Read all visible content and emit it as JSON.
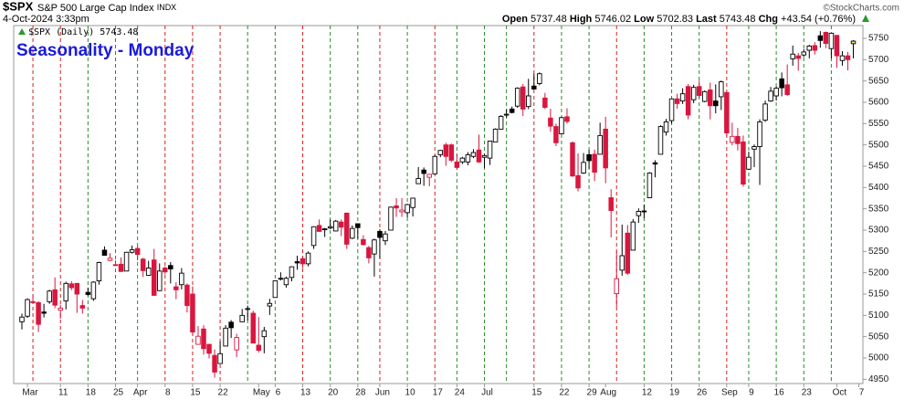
{
  "header": {
    "symbol": "$SPX",
    "name": "S&P 500 Large Cap Index",
    "exchange": "INDX",
    "datetime": "4-Oct-2024 3:33pm",
    "copyright": "©StockCharts.com",
    "open_label": "Open",
    "high_label": "High",
    "low_label": "Low",
    "last_label": "Last",
    "chg_label": "Chg",
    "chg": {
      "value": 43.54,
      "label": "+43.54"
    },
    "chg_pct": {
      "value": 0.76,
      "label": "(+0.76%)"
    }
  },
  "chart_data": {
    "type": "candlestick",
    "title": "Seasonality - Monday",
    "legend_label": "$SPX (Daily)",
    "categories": [
      null,
      "Mar",
      null,
      null,
      null,
      null,
      null,
      "11",
      null,
      null,
      null,
      null,
      "18",
      null,
      null,
      null,
      null,
      "25",
      null,
      null,
      null,
      "Apr",
      null,
      null,
      null,
      null,
      "8",
      null,
      null,
      null,
      null,
      "15",
      null,
      null,
      null,
      null,
      "22",
      null,
      null,
      null,
      null,
      null,
      null,
      "May",
      null,
      null,
      "6",
      null,
      null,
      null,
      null,
      "13",
      null,
      null,
      null,
      null,
      "20",
      null,
      null,
      null,
      null,
      "28",
      null,
      null,
      null,
      "Jun",
      null,
      null,
      null,
      null,
      "10",
      null,
      null,
      null,
      null,
      "17",
      null,
      null,
      null,
      "24",
      null,
      null,
      null,
      null,
      "Jul",
      null,
      null,
      null,
      null,
      null,
      null,
      null,
      null,
      "15",
      null,
      null,
      null,
      null,
      "22",
      null,
      null,
      null,
      null,
      "29",
      null,
      null,
      "Aug",
      null,
      null,
      null,
      null,
      null,
      null,
      "12",
      null,
      null,
      null,
      null,
      "19",
      null,
      null,
      null,
      null,
      "26",
      null,
      null,
      null,
      null,
      "Sep",
      null,
      null,
      null,
      "9",
      null,
      null,
      null,
      null,
      "16",
      null,
      null,
      null,
      null,
      "23",
      null,
      null,
      null,
      null,
      null,
      "Oct",
      null,
      null,
      null,
      "7"
    ],
    "open": [
      5085,
      5098,
      5132,
      5130,
      5108,
      5132,
      5160,
      5112,
      5134,
      5174,
      5175,
      5123,
      5154,
      5139,
      5181,
      5253,
      5229,
      5219,
      5220,
      5204,
      5248,
      5257,
      5232,
      5194,
      5230,
      5158,
      5211,
      5217,
      5167,
      5172,
      5171,
      5150,
      5032,
      5068,
      5032,
      5006,
      4987,
      5028,
      5084,
      5019,
      5085,
      5114,
      5105,
      5030,
      5050,
      5122,
      5142,
      5187,
      5172,
      5189,
      5226,
      5233,
      5221,
      5264,
      5311,
      5303,
      5305,
      5298,
      5319,
      5340,
      5281,
      5315,
      5278,
      5259,
      5244,
      5297,
      5275,
      5300,
      5357,
      5343,
      5341,
      5353,
      5409,
      5441,
      5424,
      5432,
      5477,
      5500,
      5500,
      5460,
      5460,
      5460,
      5473,
      5488,
      5471,
      5469,
      5507,
      5537,
      5572,
      5584,
      5591,
      5636,
      5590,
      5638,
      5644,
      5610,
      5563,
      5543,
      5526,
      5566,
      5505,
      5428,
      5434,
      5477,
      5478,
      5478,
      5537,
      5376,
      5151,
      5206,
      5293,
      5253,
      5334,
      5345,
      5376,
      5458,
      5478,
      5530,
      5557,
      5608,
      5603,
      5637,
      5606,
      5637,
      5602,
      5629,
      5603,
      5613,
      5623,
      5506,
      5520,
      5507,
      5443,
      5490,
      5496,
      5558,
      5603,
      5615,
      5655,
      5641,
      5702,
      5709,
      5711,
      5722,
      5733,
      5756,
      5764,
      5726,
      5757,
      5698,
      5709,
      5737.48,
      null
    ],
    "high": [
      5104,
      5140,
      5149,
      5133,
      5127,
      5160,
      5189,
      5125,
      5179,
      5180,
      5176,
      5136,
      5165,
      5180,
      5226,
      5262,
      5246,
      5229,
      5236,
      5249,
      5264,
      5263,
      5235,
      5228,
      5256,
      5222,
      5215,
      5225,
      5178,
      5211,
      5175,
      5168,
      5075,
      5077,
      5033,
      5020,
      5039,
      5077,
      5089,
      5057,
      5115,
      5123,
      5111,
      5096,
      5073,
      5139,
      5181,
      5201,
      5191,
      5215,
      5240,
      5238,
      5250,
      5309,
      5325,
      5305,
      5325,
      5324,
      5325,
      5341,
      5311,
      5315,
      5288,
      5263,
      5280,
      5302,
      5298,
      5355,
      5375,
      5375,
      5362,
      5376,
      5448,
      5447,
      5432,
      5476,
      5488,
      5505,
      5503,
      5478,
      5472,
      5483,
      5490,
      5524,
      5479,
      5510,
      5539,
      5570,
      5583,
      5590,
      5635,
      5643,
      5655,
      5667,
      5670,
      5622,
      5585,
      5550,
      5566,
      5586,
      5508,
      5480,
      5481,
      5488,
      5489,
      5552,
      5566,
      5396,
      5250,
      5313,
      5312,
      5326,
      5351,
      5360,
      5436,
      5464,
      5546,
      5561,
      5609,
      5620,
      5633,
      5643,
      5641,
      5651,
      5628,
      5646,
      5642,
      5651,
      5623,
      5552,
      5540,
      5522,
      5484,
      5501,
      5560,
      5604,
      5636,
      5637,
      5670,
      5689,
      5733,
      5716,
      5725,
      5735,
      5741,
      5767,
      5766,
      5763,
      5758,
      5720,
      5718,
      5746.02,
      null
    ],
    "low": [
      5067,
      5094,
      5127,
      5061,
      5095,
      5127,
      5117,
      5092,
      5114,
      5159,
      5106,
      5104,
      5146,
      5134,
      5172,
      5240,
      5227,
      5216,
      5202,
      5204,
      5245,
      5229,
      5190,
      5194,
      5146,
      5157,
      5196,
      5175,
      5138,
      5161,
      5107,
      5053,
      5031,
      5008,
      4999,
      4954,
      4987,
      5028,
      5047,
      5002,
      5084,
      5088,
      5035,
      5013,
      5011,
      5101,
      5142,
      5182,
      5165,
      5180,
      5207,
      5211,
      5215,
      5256,
      5296,
      5284,
      5302,
      5297,
      5286,
      5256,
      5279,
      5280,
      5264,
      5222,
      5191,
      5234,
      5265,
      5300,
      5331,
      5331,
      5330,
      5332,
      5409,
      5404,
      5403,
      5432,
      5471,
      5451,
      5460,
      5442,
      5455,
      5452,
      5469,
      5458,
      5446,
      5453,
      5507,
      5537,
      5564,
      5574,
      5587,
      5568,
      5584,
      5630,
      5640,
      5584,
      5531,
      5497,
      5525,
      5550,
      5425,
      5391,
      5432,
      5444,
      5415,
      5478,
      5410,
      5283,
      5120,
      5193,
      5195,
      5253,
      5317,
      5328,
      5376,
      5424,
      5478,
      5522,
      5550,
      5585,
      5596,
      5560,
      5598,
      5610,
      5600,
      5560,
      5574,
      5582,
      5521,
      5499,
      5487,
      5402,
      5441,
      5448,
      5406,
      5554,
      5601,
      5604,
      5614,
      5615,
      5686,
      5674,
      5706,
      5703,
      5712,
      5728,
      5727,
      5703,
      5681,
      5686,
      5675,
      5702.83,
      null
    ],
    "close": [
      5096,
      5137,
      5130,
      5079,
      5105,
      5157,
      5124,
      5117,
      5175,
      5165,
      5150,
      5117,
      5149,
      5178,
      5224,
      5241,
      5234,
      5218,
      5203,
      5248,
      5254,
      5243,
      5205,
      5211,
      5147,
      5204,
      5202,
      5209,
      5160,
      5199,
      5123,
      5061,
      5051,
      5022,
      5011,
      4967,
      5010,
      5070,
      5071,
      5048,
      5100,
      5116,
      5035,
      5018,
      5064,
      5128,
      5181,
      5187,
      5187,
      5214,
      5223,
      5221,
      5246,
      5308,
      5297,
      5303,
      5308,
      5321,
      5307,
      5267,
      5304,
      5306,
      5266,
      5235,
      5277,
      5283,
      5291,
      5354,
      5352,
      5347,
      5360,
      5375,
      5421,
      5433,
      5431,
      5473,
      5487,
      5473,
      5464,
      5447,
      5469,
      5477,
      5482,
      5460,
      5475,
      5509,
      5537,
      5567,
      5572,
      5576,
      5633,
      5584,
      5615,
      5631,
      5667,
      5588,
      5544,
      5505,
      5564,
      5555,
      5427,
      5399,
      5459,
      5463,
      5436,
      5522,
      5446,
      5346,
      5186,
      5240,
      5199,
      5319,
      5344,
      5344,
      5434,
      5455,
      5543,
      5554,
      5608,
      5597,
      5620,
      5570,
      5635,
      5616,
      5625,
      5592,
      5592,
      5648,
      5528,
      5520,
      5503,
      5408,
      5471,
      5496,
      5554,
      5596,
      5626,
      5633,
      5634,
      5618,
      5713,
      5703,
      5718,
      5732,
      5722,
      5745,
      5738,
      5762,
      5709,
      5709,
      5700,
      5743.48,
      null
    ],
    "up_color": "#000000",
    "down_color": "#d8173f",
    "last_color": "#f3ea6a",
    "monday_indices": [
      2,
      7,
      12,
      17,
      21,
      26,
      31,
      36,
      41,
      46,
      51,
      56,
      61,
      65,
      70,
      75,
      79,
      84,
      88,
      93,
      98,
      103,
      108,
      113,
      118,
      123,
      128,
      132,
      137,
      142,
      147
    ],
    "monday_colors": [
      "#d42020",
      "#d42020",
      "#2a8a2a",
      "#2a8a2a",
      "#2a8a2a",
      "#d42020",
      "#d42020",
      "#d42020",
      "#2a8a2a",
      "#2a8a2a",
      "#d42020",
      "#2a8a2a",
      "#2a8a2a",
      "#d42020",
      "#2a8a2a",
      "#d42020",
      "#2a8a2a",
      "#2a8a2a",
      "#2a8a2a",
      "#d42020",
      "#2a8a2a",
      "#2a8a2a",
      "#d42020",
      "#2a8a2a",
      "#2a8a2a",
      "#2a8a2a",
      "#d42020",
      "#2a8a2a",
      "#2a8a2a",
      "#2a8a2a",
      "#2a8a2a"
    ],
    "ylim": [
      4940,
      5780
    ],
    "yticks": [
      4950,
      5000,
      5050,
      5100,
      5150,
      5200,
      5250,
      5300,
      5350,
      5400,
      5450,
      5500,
      5550,
      5600,
      5650,
      5700,
      5750
    ],
    "grid": false
  }
}
